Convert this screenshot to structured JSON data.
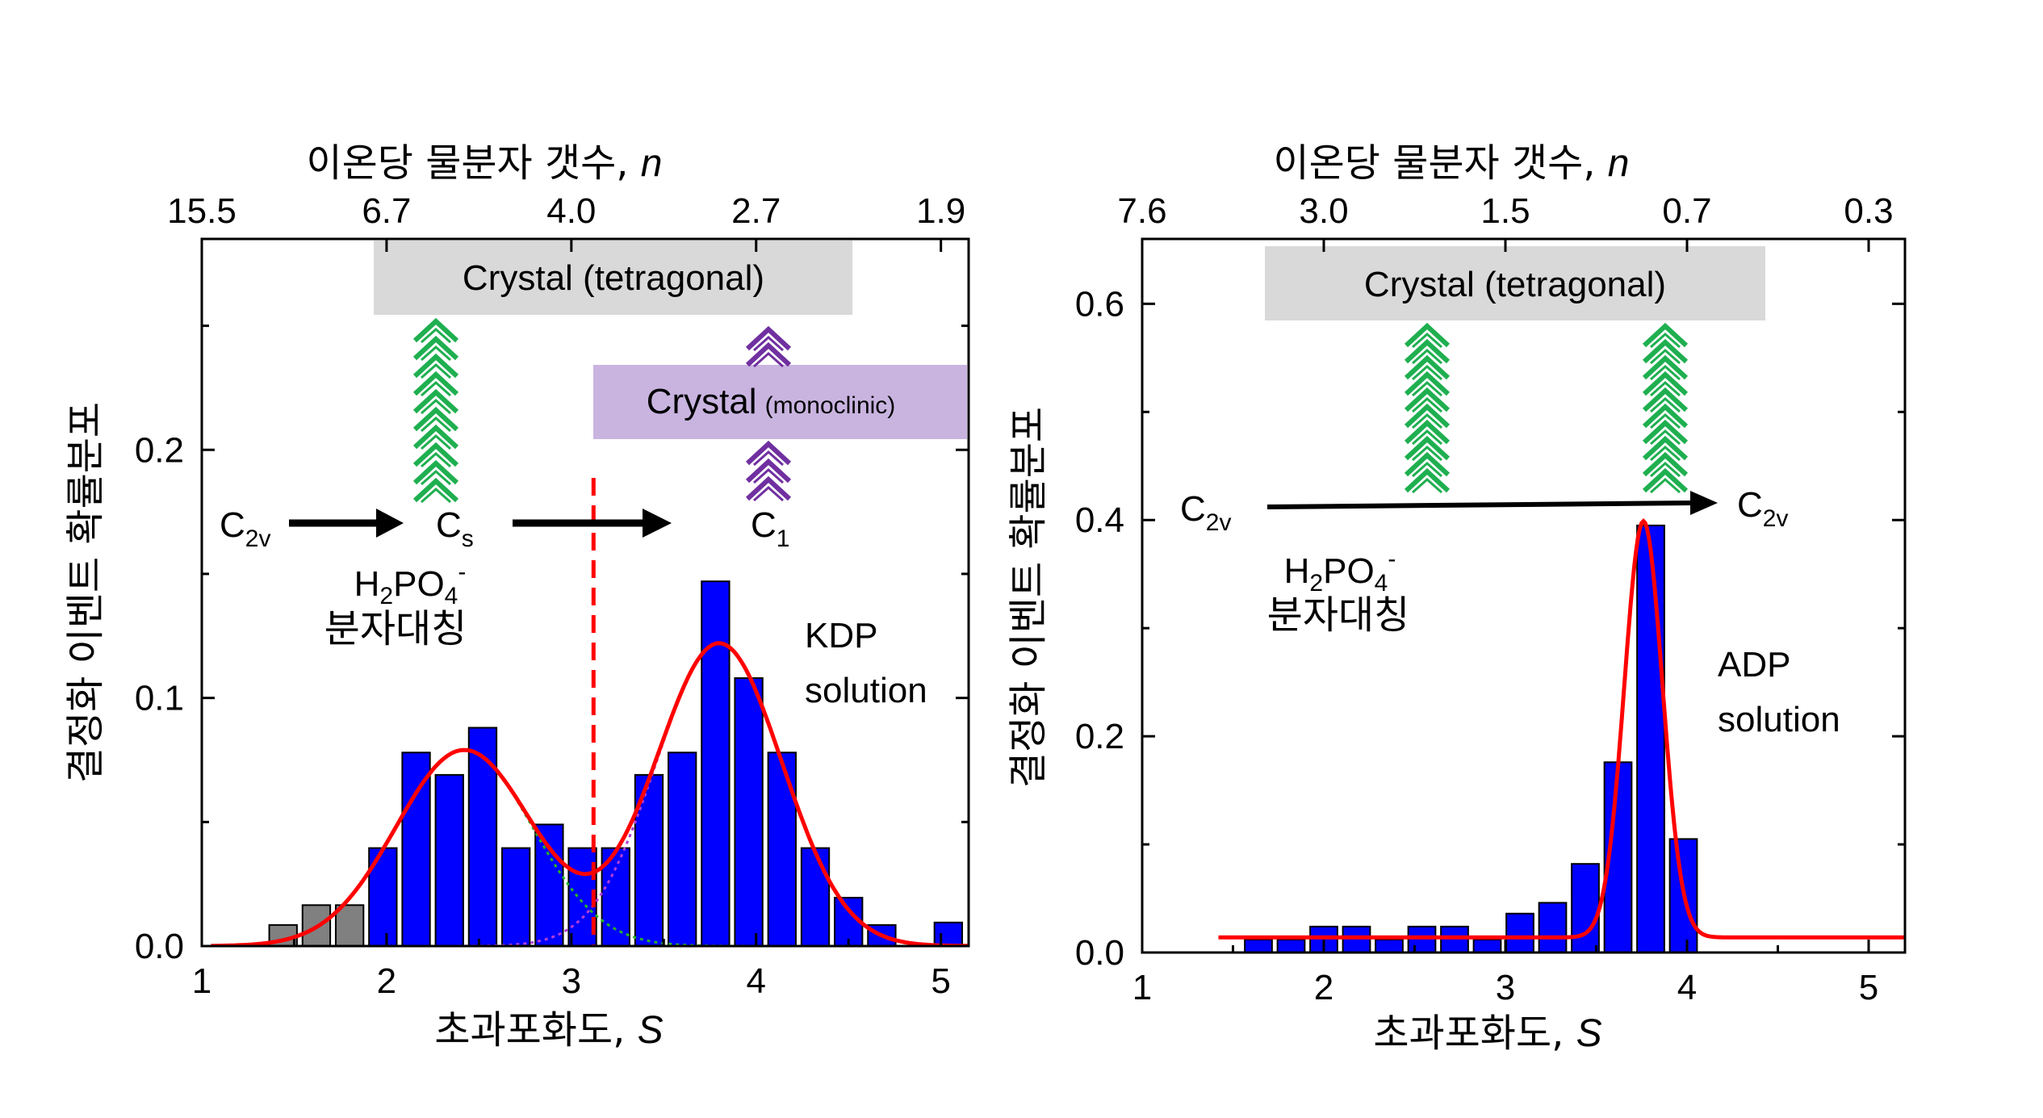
{
  "colors": {
    "bar_blue": "#0000ff",
    "bar_gray": "#808080",
    "fit_red": "#ff0000",
    "tetragonal_box": "#d9d9d9",
    "monoclinic_box": "#c9b4e0",
    "chevron_green": "#1faf50",
    "chevron_purple": "#7030a0",
    "component_green": "#27b427",
    "component_purple": "#b03ed8"
  },
  "chart_data": [
    {
      "type": "bar",
      "xlabel": "초과포화도, S",
      "ylabel": "결정화 이벤트 확률분포",
      "top_axis_label": "이온당 물분자 갯수, n",
      "xlim": [
        1,
        5.15
      ],
      "ylim": [
        0,
        0.285
      ],
      "x_ticks": [
        "1",
        "2",
        "3",
        "4",
        "5"
      ],
      "y_ticks": [
        "0.0",
        "0.1",
        "0.2"
      ],
      "top_ticks": [
        {
          "x": 1.0,
          "label": "15.5"
        },
        {
          "x": 2.0,
          "label": "6.7"
        },
        {
          "x": 3.0,
          "label": "4.0"
        },
        {
          "x": 4.0,
          "label": "2.7"
        },
        {
          "x": 5.0,
          "label": "1.9"
        }
      ],
      "series": [
        {
          "color": "gray",
          "bins": [
            {
              "x": 1.44,
              "value": 0.0085
            },
            {
              "x": 1.62,
              "value": 0.0165
            },
            {
              "x": 1.8,
              "value": 0.0165
            }
          ]
        },
        {
          "color": "blue",
          "bins": [
            {
              "x": 1.98,
              "value": 0.0395
            },
            {
              "x": 2.16,
              "value": 0.078
            },
            {
              "x": 2.34,
              "value": 0.069
            },
            {
              "x": 2.52,
              "value": 0.088
            },
            {
              "x": 2.7,
              "value": 0.0395
            },
            {
              "x": 2.88,
              "value": 0.049
            },
            {
              "x": 3.06,
              "value": 0.0395
            },
            {
              "x": 3.24,
              "value": 0.0395
            },
            {
              "x": 3.42,
              "value": 0.069
            },
            {
              "x": 3.6,
              "value": 0.078
            },
            {
              "x": 3.78,
              "value": 0.147
            },
            {
              "x": 3.96,
              "value": 0.108
            },
            {
              "x": 4.14,
              "value": 0.078
            },
            {
              "x": 4.32,
              "value": 0.0395
            },
            {
              "x": 4.5,
              "value": 0.0195
            },
            {
              "x": 4.68,
              "value": 0.0085
            },
            {
              "x": 5.04,
              "value": 0.0095
            }
          ]
        }
      ],
      "fit": {
        "peaks": [
          {
            "amp": 0.079,
            "mu": 2.42,
            "sigma": 0.37
          },
          {
            "amp": 0.122,
            "mu": 3.8,
            "sigma": 0.34
          }
        ]
      },
      "divider_x": 3.12,
      "boxes": [
        {
          "label": "Crystal (tetragonal)"
        },
        {
          "label_main": "Crystal",
          "label_small": "(monoclinic)"
        }
      ],
      "annotations": {
        "c2v": {
          "main": "C",
          "sub": "2v"
        },
        "cs": {
          "main": "C",
          "sub": "s"
        },
        "c1": {
          "main": "C",
          "sub": "1"
        },
        "h2po4_main": "H",
        "h2po4_sub": "2",
        "h2po4_mid": "PO",
        "h2po4_sub2": "4",
        "h2po4_sup": "-",
        "symmetry": "분자대칭",
        "solution_line1": "KDP",
        "solution_line2": "solution"
      }
    },
    {
      "type": "bar",
      "xlabel": "초과포화도, S",
      "ylabel": "결정화 이벤트 확률분포",
      "top_axis_label": "이온당 물분자 갯수, n",
      "xlim": [
        1,
        5.2
      ],
      "ylim": [
        0,
        0.66
      ],
      "x_ticks": [
        "1",
        "2",
        "3",
        "4",
        "5"
      ],
      "y_ticks": [
        "0.0",
        "0.2",
        "0.4",
        "0.6"
      ],
      "top_ticks": [
        {
          "x": 1.0,
          "label": "7.6"
        },
        {
          "x": 2.0,
          "label": "3.0"
        },
        {
          "x": 3.0,
          "label": "1.5"
        },
        {
          "x": 4.0,
          "label": "0.7"
        },
        {
          "x": 5.0,
          "label": "0.3"
        }
      ],
      "series": [
        {
          "color": "blue",
          "bins": [
            {
              "x": 1.64,
              "value": 0.012
            },
            {
              "x": 1.82,
              "value": 0.012
            },
            {
              "x": 2.0,
              "value": 0.024
            },
            {
              "x": 2.18,
              "value": 0.024
            },
            {
              "x": 2.36,
              "value": 0.012
            },
            {
              "x": 2.54,
              "value": 0.024
            },
            {
              "x": 2.72,
              "value": 0.024
            },
            {
              "x": 2.9,
              "value": 0.012
            },
            {
              "x": 3.08,
              "value": 0.036
            },
            {
              "x": 3.26,
              "value": 0.046
            },
            {
              "x": 3.44,
              "value": 0.082
            },
            {
              "x": 3.62,
              "value": 0.176
            },
            {
              "x": 3.8,
              "value": 0.395
            },
            {
              "x": 3.98,
              "value": 0.105
            }
          ]
        }
      ],
      "fit": {
        "baseline": 0.014,
        "peaks": [
          {
            "amp": 0.385,
            "mu": 3.76,
            "sigma": 0.105
          }
        ]
      },
      "boxes": [
        {
          "label": "Crystal (tetragonal)"
        }
      ],
      "annotations": {
        "c2v_left": {
          "main": "C",
          "sub": "2v"
        },
        "c2v_right": {
          "main": "C",
          "sub": "2v"
        },
        "h2po4_main": "H",
        "h2po4_sub": "2",
        "h2po4_mid": "PO",
        "h2po4_sub2": "4",
        "h2po4_sup": "-",
        "symmetry": "분자대칭",
        "solution_line1": "ADP",
        "solution_line2": "solution"
      }
    }
  ]
}
